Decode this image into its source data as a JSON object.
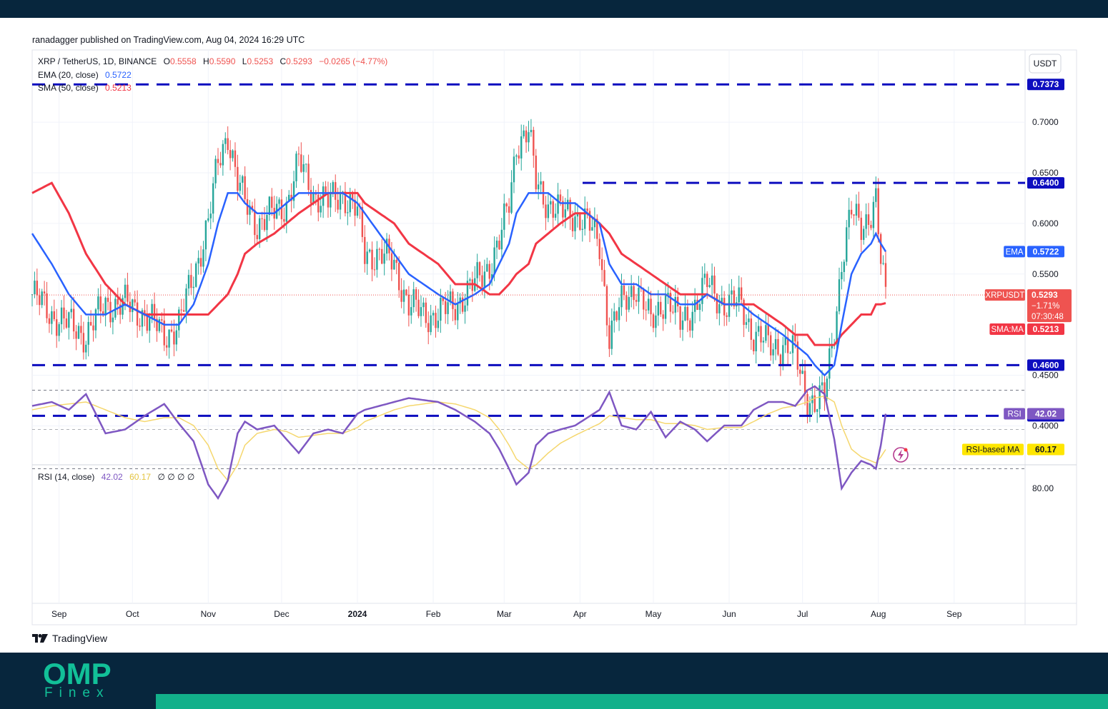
{
  "publisher": "ranadagger published on TradingView.com, Aug 04, 2024 16:29 UTC",
  "header": {
    "symbol": "XRP / TetherUS, 1D, BINANCE",
    "o_label": "O",
    "o_value": "0.5558",
    "h_label": "H",
    "h_value": "0.5590",
    "l_label": "L",
    "l_value": "0.5253",
    "c_label": "C",
    "c_value": "0.5293",
    "change": "−0.0265 (−4.77%)",
    "ema_label": "EMA (20, close)",
    "ema_value": "0.5722",
    "sma_label": "SMA (50, close)",
    "sma_value": "0.5213",
    "rsi_label": "RSI (14, close)",
    "rsi_value": "42.02",
    "rsi_ma_value": "60.17",
    "rsi_extra": "∅ ∅ ∅ ∅"
  },
  "currency": "USDT",
  "price_ticks": [
    "0.7000",
    "0.6500",
    "0.6000",
    "0.5500",
    "0.4500",
    "0.4000"
  ],
  "rsi_ticks": [
    "80.00"
  ],
  "time_labels": [
    "Sep",
    "Oct",
    "Nov",
    "Dec",
    "2024",
    "Feb",
    "Mar",
    "Apr",
    "May",
    "Jun",
    "Jul",
    "Aug",
    "Sep"
  ],
  "labels": {
    "level_1": "0.7373",
    "level_2": "0.6400",
    "level_3": "0.4600",
    "level_4": "0.4100",
    "ema_tag": "EMA",
    "ema_value": "0.5722",
    "sym_tag": "XRPUSDT",
    "sym_value": "0.5293",
    "sym_pct": "−1.71%",
    "sym_countdown": "07:30:48",
    "sma_tag": "SMA:MA",
    "sma_value": "0.5213",
    "rsi_ma_tag": "RSI-based MA",
    "rsi_ma_value": "60.17",
    "rsi_tag": "RSI",
    "rsi_value": "42.02"
  },
  "branding": {
    "tradingview": "TradingView",
    "omp_main": "OMP",
    "omp_sub": "Finex"
  },
  "colors": {
    "up": "#26a69a",
    "down": "#ef5350",
    "ema": "#2962ff",
    "sma": "#f23645",
    "level": "#0d0dbf",
    "rsi": "#7e57c2",
    "rsi_ma": "#f5d76e",
    "header_bar": "#07263d",
    "brand": "#12c098"
  },
  "chart_data": {
    "type": "candlestick",
    "symbol": "XRP / TetherUS",
    "timeframe": "1D",
    "ylim": [
      0.37,
      0.76
    ],
    "x_range": [
      "2023-08-21",
      "2024-09-30"
    ],
    "horizontal_levels": [
      0.7373,
      0.64,
      0.46,
      0.41
    ],
    "last_close": 0.5293,
    "ema20_last": 0.5722,
    "sma50_last": 0.5213,
    "series_anchors": {
      "dates": [
        "2023-08-21",
        "2023-08-29",
        "2023-09-05",
        "2023-09-12",
        "2023-09-20",
        "2023-09-28",
        "2023-10-06",
        "2023-10-14",
        "2023-10-20",
        "2023-10-26",
        "2023-11-01",
        "2023-11-05",
        "2023-11-09",
        "2023-11-13",
        "2023-11-16",
        "2023-11-21",
        "2023-11-28",
        "2023-12-03",
        "2023-12-08",
        "2023-12-14",
        "2023-12-20",
        "2023-12-26",
        "2024-01-01",
        "2024-01-04",
        "2024-01-10",
        "2024-01-16",
        "2024-01-22",
        "2024-01-28",
        "2024-02-03",
        "2024-02-10",
        "2024-02-18",
        "2024-02-24",
        "2024-02-28",
        "2024-03-03",
        "2024-03-06",
        "2024-03-11",
        "2024-03-14",
        "2024-03-19",
        "2024-03-24",
        "2024-03-30",
        "2024-04-04",
        "2024-04-09",
        "2024-04-13",
        "2024-04-18",
        "2024-04-24",
        "2024-04-30",
        "2024-05-06",
        "2024-05-12",
        "2024-05-18",
        "2024-05-23",
        "2024-05-30",
        "2024-06-06",
        "2024-06-11",
        "2024-06-17",
        "2024-06-23",
        "2024-06-28",
        "2024-07-03",
        "2024-07-06",
        "2024-07-10",
        "2024-07-14",
        "2024-07-17",
        "2024-07-21",
        "2024-07-25",
        "2024-07-29",
        "2024-07-31",
        "2024-08-02",
        "2024-08-04"
      ],
      "close": [
        0.53,
        0.51,
        0.5,
        0.49,
        0.52,
        0.52,
        0.51,
        0.49,
        0.5,
        0.55,
        0.6,
        0.66,
        0.69,
        0.64,
        0.62,
        0.6,
        0.61,
        0.62,
        0.66,
        0.63,
        0.62,
        0.63,
        0.61,
        0.57,
        0.57,
        0.56,
        0.52,
        0.51,
        0.51,
        0.52,
        0.54,
        0.56,
        0.58,
        0.62,
        0.68,
        0.69,
        0.64,
        0.62,
        0.61,
        0.61,
        0.6,
        0.58,
        0.49,
        0.52,
        0.54,
        0.5,
        0.53,
        0.5,
        0.52,
        0.54,
        0.52,
        0.52,
        0.49,
        0.48,
        0.48,
        0.47,
        0.43,
        0.42,
        0.43,
        0.5,
        0.56,
        0.61,
        0.6,
        0.61,
        0.62,
        0.56,
        0.529
      ]
    },
    "ema20_anchors": [
      0.59,
      0.56,
      0.53,
      0.51,
      0.51,
      0.52,
      0.51,
      0.5,
      0.5,
      0.52,
      0.56,
      0.6,
      0.63,
      0.63,
      0.62,
      0.61,
      0.61,
      0.62,
      0.63,
      0.63,
      0.63,
      0.63,
      0.62,
      0.61,
      0.59,
      0.57,
      0.55,
      0.54,
      0.53,
      0.52,
      0.53,
      0.54,
      0.56,
      0.58,
      0.61,
      0.63,
      0.63,
      0.63,
      0.62,
      0.62,
      0.61,
      0.6,
      0.56,
      0.54,
      0.54,
      0.53,
      0.53,
      0.52,
      0.52,
      0.53,
      0.52,
      0.52,
      0.51,
      0.5,
      0.49,
      0.48,
      0.47,
      0.46,
      0.45,
      0.46,
      0.5,
      0.55,
      0.57,
      0.58,
      0.59,
      0.58,
      0.5722
    ],
    "sma50_anchors": [
      0.63,
      0.64,
      0.61,
      0.57,
      0.54,
      0.52,
      0.51,
      0.51,
      0.51,
      0.51,
      0.51,
      0.52,
      0.53,
      0.55,
      0.57,
      0.58,
      0.59,
      0.6,
      0.61,
      0.62,
      0.63,
      0.63,
      0.63,
      0.62,
      0.61,
      0.6,
      0.58,
      0.57,
      0.56,
      0.54,
      0.54,
      0.53,
      0.53,
      0.54,
      0.55,
      0.56,
      0.58,
      0.59,
      0.6,
      0.61,
      0.61,
      0.6,
      0.59,
      0.57,
      0.56,
      0.55,
      0.54,
      0.53,
      0.53,
      0.53,
      0.52,
      0.52,
      0.52,
      0.51,
      0.5,
      0.49,
      0.49,
      0.48,
      0.48,
      0.48,
      0.49,
      0.5,
      0.51,
      0.51,
      0.52,
      0.52,
      0.5213
    ],
    "rsi": {
      "name": "RSI (14, close)",
      "last": 42.02,
      "ma_last": 60.17,
      "bands": [
        70,
        50,
        30
      ],
      "anchors": [
        38,
        36,
        40,
        32,
        52,
        50,
        43,
        37,
        47,
        56,
        78,
        85,
        76,
        52,
        46,
        50,
        48,
        55,
        62,
        52,
        50,
        52,
        42,
        40,
        38,
        36,
        34,
        35,
        36,
        40,
        46,
        52,
        60,
        70,
        78,
        72,
        58,
        52,
        50,
        48,
        44,
        40,
        31,
        48,
        50,
        41,
        54,
        46,
        50,
        56,
        48,
        48,
        40,
        36,
        36,
        38,
        30,
        28,
        32,
        55,
        80,
        72,
        66,
        68,
        70,
        58,
        42.02
      ],
      "ma_anchors": [
        40,
        38,
        37,
        36,
        40,
        44,
        46,
        44,
        44,
        48,
        58,
        70,
        76,
        68,
        58,
        52,
        50,
        51,
        54,
        53,
        52,
        52,
        49,
        46,
        43,
        40,
        38,
        37,
        36,
        37,
        40,
        44,
        50,
        58,
        65,
        70,
        68,
        62,
        57,
        53,
        50,
        47,
        43,
        44,
        45,
        45,
        47,
        47,
        48,
        50,
        49,
        49,
        46,
        42,
        39,
        38,
        36,
        34,
        33,
        36,
        48,
        60,
        64,
        66,
        67,
        64,
        60.17
      ]
    }
  }
}
